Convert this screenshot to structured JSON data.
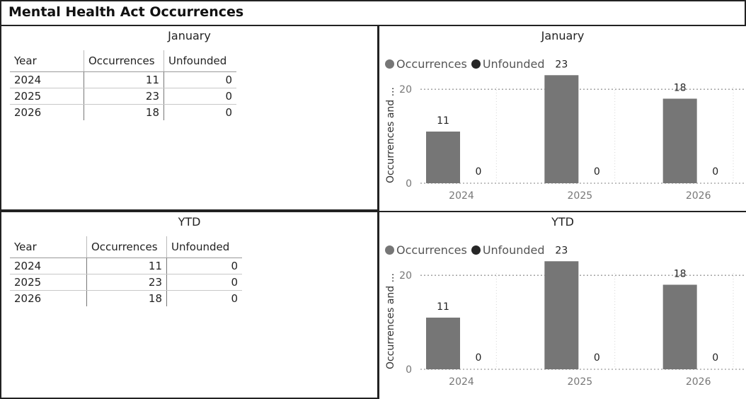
{
  "report": {
    "title": "Mental Health Act Occurrences"
  },
  "colors": {
    "occurrences": "#767676",
    "unfounded": "#262626",
    "grid": "#9a9a9a"
  },
  "tables": [
    {
      "title": "January",
      "columns": [
        "Year",
        "Occurrences",
        "Unfounded"
      ],
      "rows": [
        {
          "year": "2024",
          "occurrences": "11",
          "unfounded": "0"
        },
        {
          "year": "2025",
          "occurrences": "23",
          "unfounded": "0"
        },
        {
          "year": "2026",
          "occurrences": "18",
          "unfounded": "0"
        }
      ]
    },
    {
      "title": "YTD",
      "columns": [
        "Year",
        "Occurrences",
        "Unfounded"
      ],
      "rows": [
        {
          "year": "2024",
          "occurrences": "11",
          "unfounded": "0"
        },
        {
          "year": "2025",
          "occurrences": "23",
          "unfounded": "0"
        },
        {
          "year": "2026",
          "occurrences": "18",
          "unfounded": "0"
        }
      ]
    }
  ],
  "chart_data": [
    {
      "type": "bar",
      "title": "January",
      "categories": [
        "2024",
        "2025",
        "2026"
      ],
      "series": [
        {
          "name": "Occurrences",
          "values": [
            11,
            23,
            18
          ]
        },
        {
          "name": "Unfounded",
          "values": [
            0,
            0,
            0
          ]
        }
      ],
      "xlabel": "",
      "ylabel": "Occurrences and ...",
      "yticks": [
        0,
        20
      ],
      "ylim": [
        0,
        25
      ],
      "grid": true,
      "legend": "top-left"
    },
    {
      "type": "bar",
      "title": "YTD",
      "categories": [
        "2024",
        "2025",
        "2026"
      ],
      "series": [
        {
          "name": "Occurrences",
          "values": [
            11,
            23,
            18
          ]
        },
        {
          "name": "Unfounded",
          "values": [
            0,
            0,
            0
          ]
        }
      ],
      "xlabel": "",
      "ylabel": "Occurrences and ...",
      "yticks": [
        0,
        20
      ],
      "ylim": [
        0,
        25
      ],
      "grid": true,
      "legend": "top-left"
    }
  ]
}
